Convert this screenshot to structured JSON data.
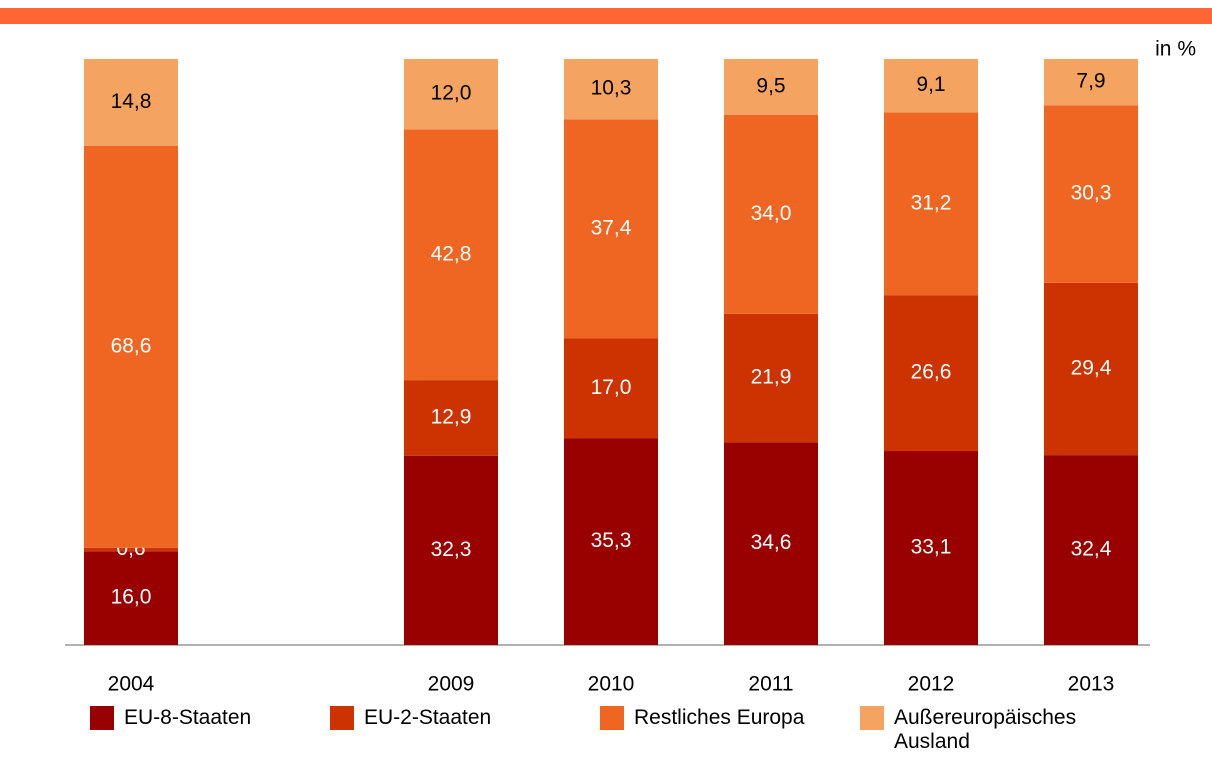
{
  "chart_data": {
    "type": "stacked_bar",
    "unit": "in %",
    "categories": [
      "2004",
      null,
      "2009",
      "2010",
      "2011",
      "2012",
      "2013"
    ],
    "ylim": [
      0,
      100
    ],
    "series": [
      {
        "name": "EU-8-Staaten",
        "color": "#990000",
        "label_color": "#ffffff",
        "values": [
          16.0,
          null,
          32.3,
          35.3,
          34.6,
          33.1,
          32.4
        ],
        "value_labels": [
          "16,0",
          null,
          "32,3",
          "35,3",
          "34,6",
          "33,1",
          "32,4"
        ]
      },
      {
        "name": "EU-2-Staaten",
        "color": "#cc3300",
        "label_color": "#ffffff",
        "values": [
          0.6,
          null,
          12.9,
          17.0,
          21.9,
          26.6,
          29.4
        ],
        "value_labels": [
          "0,6",
          null,
          "12,9",
          "17,0",
          "21,9",
          "26,6",
          "29,4"
        ]
      },
      {
        "name": "Restliches Europa",
        "color": "#ee6622",
        "label_color": "#ffffff",
        "values": [
          68.6,
          null,
          42.8,
          37.4,
          34.0,
          31.2,
          30.3
        ],
        "value_labels": [
          "68,6",
          null,
          "42,8",
          "37,4",
          "34,0",
          "31,2",
          "30,3"
        ]
      },
      {
        "name": "Außereuropäisches Ausland",
        "color": "#f4a460",
        "label_color": "#000000",
        "values": [
          14.8,
          null,
          12.0,
          10.3,
          9.5,
          9.1,
          7.9
        ],
        "value_labels": [
          "14,8",
          null,
          "12,0",
          "10,3",
          "9,5",
          "9,1",
          "7,9"
        ]
      }
    ]
  }
}
